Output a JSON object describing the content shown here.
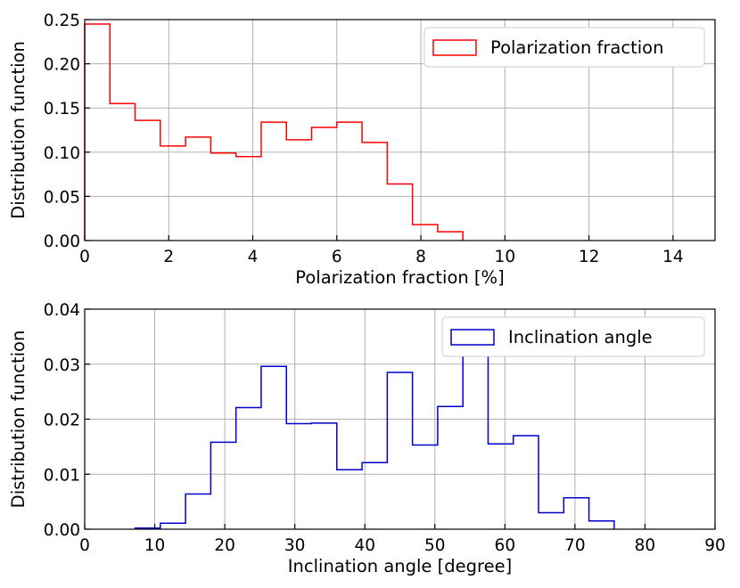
{
  "chart_data": [
    {
      "type": "step-histogram",
      "color": "#ff0000",
      "legend": "Polarization fraction",
      "legend_position": "top-right",
      "xlabel": "Polarization fraction [%]",
      "ylabel": "Distribution function",
      "xlim": [
        0,
        15
      ],
      "ylim": [
        0,
        0.25
      ],
      "xticks": [
        0,
        2,
        4,
        6,
        8,
        10,
        12,
        14
      ],
      "xtick_labels": [
        "0",
        "2",
        "4",
        "6",
        "8",
        "10",
        "12",
        "14"
      ],
      "yticks": [
        0,
        0.05,
        0.1,
        0.15,
        0.2,
        0.25
      ],
      "ytick_labels": [
        "0.00",
        "0.05",
        "0.10",
        "0.15",
        "0.20",
        "0.25"
      ],
      "grid": true,
      "bin_edges": [
        0,
        0.6,
        1.2,
        1.8,
        2.4,
        3.0,
        3.6,
        4.2,
        4.8,
        5.4,
        6.0,
        6.6,
        7.2,
        7.8,
        8.4,
        9.0
      ],
      "values": [
        0.245,
        0.155,
        0.136,
        0.107,
        0.117,
        0.099,
        0.095,
        0.134,
        0.114,
        0.128,
        0.134,
        0.111,
        0.064,
        0.018,
        0.01
      ]
    },
    {
      "type": "step-histogram",
      "color": "#0000cc",
      "legend": "Inclination angle",
      "legend_position": "top-right",
      "xlabel": "Inclination angle [degree]",
      "ylabel": "Distribution function",
      "xlim": [
        0,
        90
      ],
      "ylim": [
        0,
        0.04
      ],
      "xticks": [
        0,
        10,
        20,
        30,
        40,
        50,
        60,
        70,
        80,
        90
      ],
      "xtick_labels": [
        "0",
        "10",
        "20",
        "30",
        "40",
        "50",
        "60",
        "70",
        "80",
        "90"
      ],
      "yticks": [
        0,
        0.01,
        0.02,
        0.03,
        0.04
      ],
      "ytick_labels": [
        "0.00",
        "0.01",
        "0.02",
        "0.03",
        "0.04"
      ],
      "grid": true,
      "bin_edges": [
        7.2,
        10.8,
        14.4,
        18.0,
        21.6,
        25.2,
        28.8,
        32.4,
        36.0,
        39.6,
        43.2,
        46.8,
        50.4,
        54.0,
        57.6,
        61.2,
        64.8,
        68.4,
        72.0,
        75.6
      ],
      "values": [
        0.0002,
        0.0011,
        0.0064,
        0.0158,
        0.0221,
        0.0296,
        0.0192,
        0.0193,
        0.0108,
        0.0121,
        0.0285,
        0.0153,
        0.0223,
        0.032,
        0.0155,
        0.017,
        0.003,
        0.0057,
        0.0015
      ]
    }
  ]
}
